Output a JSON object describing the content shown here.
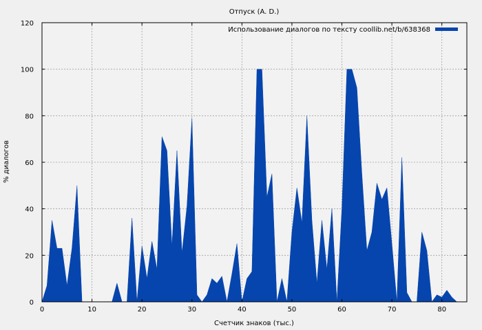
{
  "chart_data": {
    "type": "area",
    "title": "Отпуск (A. D.)",
    "xlabel": "Счетчик знаков (тыс.)",
    "ylabel": "% диалогов",
    "xlim": [
      0,
      85
    ],
    "ylim": [
      0,
      120
    ],
    "x_ticks": [
      0,
      10,
      20,
      30,
      40,
      50,
      60,
      70,
      80
    ],
    "y_ticks": [
      0,
      20,
      40,
      60,
      80,
      100,
      120
    ],
    "grid": true,
    "legend_position": "top-right",
    "series": [
      {
        "name": "Использование диалогов по тексту coollib.net/b/638368",
        "color": "#0645ad",
        "x": [
          0,
          1,
          2,
          3,
          4,
          5,
          6,
          7,
          8,
          9,
          10,
          11,
          12,
          13,
          14,
          15,
          16,
          17,
          18,
          19,
          20,
          21,
          22,
          23,
          24,
          25,
          26,
          27,
          28,
          29,
          30,
          31,
          32,
          33,
          34,
          35,
          36,
          37,
          38,
          39,
          40,
          41,
          42,
          43,
          44,
          45,
          46,
          47,
          48,
          49,
          50,
          51,
          52,
          53,
          54,
          55,
          56,
          57,
          58,
          59,
          60,
          61,
          62,
          63,
          64,
          65,
          66,
          67,
          68,
          69,
          70,
          71,
          72,
          73,
          74,
          75,
          76,
          77,
          78,
          79,
          80,
          81,
          82,
          83,
          84
        ],
        "y": [
          0,
          7,
          35,
          23,
          23,
          7,
          23,
          50,
          0,
          0,
          0,
          0,
          0,
          0,
          0,
          8,
          0,
          0,
          36,
          0,
          24,
          10,
          26,
          14,
          71,
          65,
          24,
          65,
          21,
          41,
          79,
          3,
          0,
          3,
          10,
          8,
          11,
          0,
          12,
          25,
          0,
          10,
          13,
          100,
          100,
          45,
          55,
          0,
          10,
          0,
          30,
          49,
          34,
          80,
          35,
          8,
          35,
          14,
          40,
          0,
          40,
          100,
          100,
          92,
          55,
          22,
          30,
          51,
          44,
          49,
          25,
          0,
          62,
          4,
          0,
          0,
          30,
          22,
          0,
          3,
          2,
          5,
          2,
          0,
          0
        ]
      }
    ]
  }
}
